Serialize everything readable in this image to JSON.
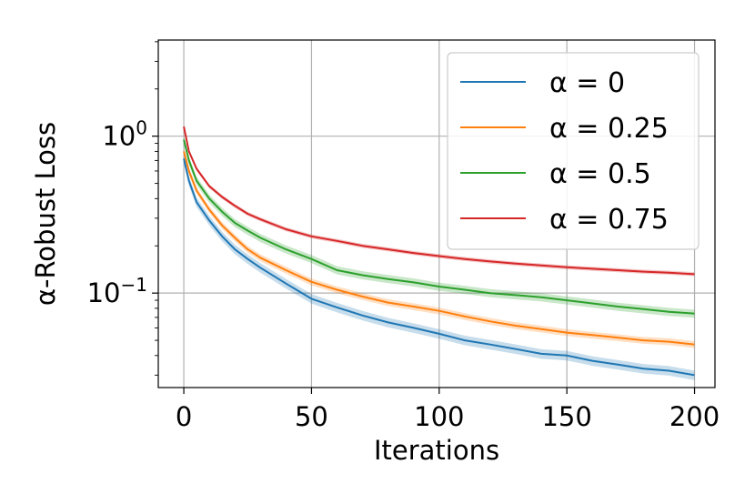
{
  "chart_data": {
    "type": "line",
    "title": "",
    "xlabel": "Iterations",
    "ylabel": "α-Robust Loss",
    "yscale": "log",
    "xlim": [
      -10,
      208
    ],
    "ylim": [
      0.025,
      4.1
    ],
    "grid": true,
    "legend_position": "top-right",
    "x_ticks": [
      {
        "value": 0,
        "label": "0"
      },
      {
        "value": 50,
        "label": "50"
      },
      {
        "value": 100,
        "label": "100"
      },
      {
        "value": 150,
        "label": "150"
      },
      {
        "value": 200,
        "label": "200"
      }
    ],
    "y_ticks": [
      {
        "value": 1,
        "base": "10",
        "exp": "0"
      },
      {
        "value": 0.1,
        "base": "10",
        "exp": "−1"
      }
    ],
    "x": [
      0,
      2,
      5,
      10,
      15,
      20,
      25,
      30,
      40,
      50,
      60,
      70,
      80,
      90,
      100,
      110,
      120,
      130,
      140,
      150,
      160,
      170,
      180,
      190,
      200
    ],
    "series": [
      {
        "name": "α = 0",
        "color": "#1f77b4",
        "band": 0.07,
        "values": [
          0.72,
          0.52,
          0.38,
          0.29,
          0.23,
          0.19,
          0.165,
          0.145,
          0.115,
          0.092,
          0.081,
          0.072,
          0.065,
          0.06,
          0.055,
          0.05,
          0.047,
          0.044,
          0.041,
          0.04,
          0.037,
          0.035,
          0.033,
          0.032,
          0.03
        ]
      },
      {
        "name": "α = 0.25",
        "color": "#ff7f0e",
        "band": 0.05,
        "values": [
          0.8,
          0.6,
          0.45,
          0.34,
          0.27,
          0.225,
          0.19,
          0.168,
          0.14,
          0.118,
          0.105,
          0.095,
          0.087,
          0.082,
          0.077,
          0.071,
          0.066,
          0.062,
          0.059,
          0.056,
          0.054,
          0.052,
          0.05,
          0.049,
          0.047
        ]
      },
      {
        "name": "α = 0.5",
        "color": "#2ca02c",
        "band": 0.06,
        "values": [
          0.95,
          0.7,
          0.52,
          0.4,
          0.33,
          0.28,
          0.25,
          0.225,
          0.19,
          0.165,
          0.14,
          0.13,
          0.123,
          0.117,
          0.11,
          0.105,
          0.1,
          0.097,
          0.094,
          0.09,
          0.086,
          0.082,
          0.079,
          0.076,
          0.074
        ]
      },
      {
        "name": "α = 0.75",
        "color": "#d62728",
        "band": 0.03,
        "values": [
          1.15,
          0.8,
          0.62,
          0.48,
          0.41,
          0.36,
          0.32,
          0.295,
          0.255,
          0.23,
          0.215,
          0.2,
          0.19,
          0.18,
          0.172,
          0.165,
          0.159,
          0.154,
          0.15,
          0.146,
          0.143,
          0.14,
          0.137,
          0.135,
          0.132
        ]
      }
    ]
  }
}
